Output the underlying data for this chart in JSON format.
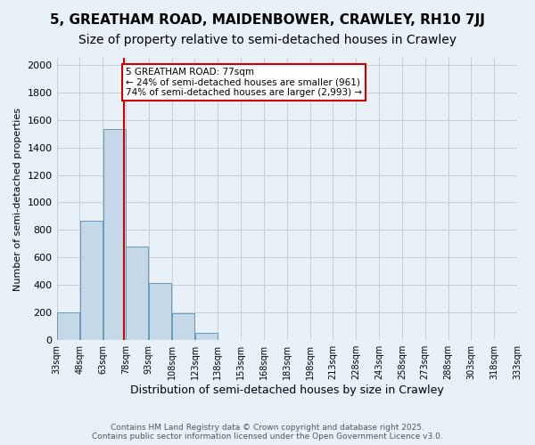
{
  "title1": "5, GREATHAM ROAD, MAIDENBOWER, CRAWLEY, RH10 7JJ",
  "title2": "Size of property relative to semi-detached houses in Crawley",
  "xlabel": "Distribution of semi-detached houses by size in Crawley",
  "ylabel": "Number of semi-detached properties",
  "property_size": 77,
  "pct_smaller": 24,
  "pct_larger": 74,
  "count_smaller": 961,
  "count_larger": 2993,
  "bin_edges": [
    33,
    48,
    63,
    78,
    93,
    108,
    123,
    138,
    153,
    168,
    183,
    198,
    213,
    228,
    243,
    258,
    273,
    288,
    303,
    318,
    333
  ],
  "bin_labels": [
    "33sqm",
    "48sqm",
    "63sqm",
    "78sqm",
    "93sqm",
    "108sqm",
    "123sqm",
    "138sqm",
    "153sqm",
    "168sqm",
    "183sqm",
    "198sqm",
    "213sqm",
    "228sqm",
    "243sqm",
    "258sqm",
    "273sqm",
    "288sqm",
    "303sqm",
    "318sqm",
    "333sqm"
  ],
  "bar_heights": [
    200,
    870,
    1530,
    680,
    415,
    195,
    55,
    0,
    0,
    0,
    0,
    0,
    0,
    0,
    0,
    0,
    0,
    0,
    0,
    0
  ],
  "bar_color": "#c5d8e8",
  "bar_edge_color": "#6699bb",
  "vline_x": 77,
  "vline_color": "#cc0000",
  "grid_color": "#cccccc",
  "bg_color": "#e8f0f8",
  "annotation_box_color": "#cc0000",
  "ylim": [
    0,
    2050
  ],
  "yticks": [
    0,
    200,
    400,
    600,
    800,
    1000,
    1200,
    1400,
    1600,
    1800,
    2000
  ],
  "footer_text": "Contains HM Land Registry data © Crown copyright and database right 2025.\nContains public sector information licensed under the Open Government Licence v3.0.",
  "title1_fontsize": 11,
  "title2_fontsize": 10
}
